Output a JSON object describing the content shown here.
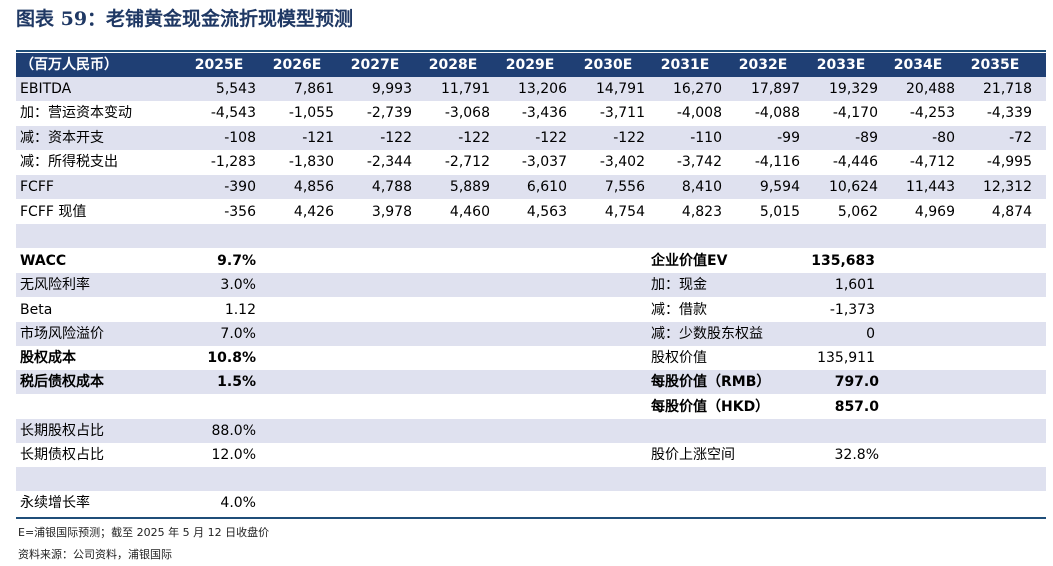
{
  "title": "图表 59：老铺黄金现金流折现模型预测",
  "header": {
    "label": "（百万人民币）",
    "years": [
      "2025E",
      "2026E",
      "2027E",
      "2028E",
      "2029E",
      "2030E",
      "2031E",
      "2032E",
      "2033E",
      "2034E",
      "2035E"
    ]
  },
  "rows": [
    {
      "label": "EBITDA",
      "values": [
        "5,543",
        "7,861",
        "9,993",
        "11,791",
        "13,206",
        "14,791",
        "16,270",
        "17,897",
        "19,329",
        "20,488",
        "21,718"
      ]
    },
    {
      "label": "加：营运资本变动",
      "values": [
        "-4,543",
        "-1,055",
        "-2,739",
        "-3,068",
        "-3,436",
        "-3,711",
        "-4,008",
        "-4,088",
        "-4,170",
        "-4,253",
        "-4,339"
      ]
    },
    {
      "label": "减：资本开支",
      "values": [
        "-108",
        "-121",
        "-122",
        "-122",
        "-122",
        "-122",
        "-110",
        "-99",
        "-89",
        "-80",
        "-72"
      ]
    },
    {
      "label": "减：所得税支出",
      "values": [
        "-1,283",
        "-1,830",
        "-2,344",
        "-2,712",
        "-3,037",
        "-3,402",
        "-3,742",
        "-4,116",
        "-4,446",
        "-4,712",
        "-4,995"
      ]
    },
    {
      "label": "FCFF",
      "values": [
        "-390",
        "4,856",
        "4,788",
        "5,889",
        "6,610",
        "7,556",
        "8,410",
        "9,594",
        "10,624",
        "11,443",
        "12,312"
      ]
    },
    {
      "label": "FCFF 现值",
      "values": [
        "-356",
        "4,426",
        "3,978",
        "4,460",
        "4,563",
        "4,754",
        "4,823",
        "5,015",
        "5,062",
        "4,969",
        "4,874"
      ]
    }
  ],
  "assumptions": {
    "wacc": {
      "label": "WACC",
      "value": "9.7%"
    },
    "risk_free": {
      "label": "无风险利率",
      "value": "3.0%"
    },
    "beta": {
      "label": "Beta",
      "value": "1.12"
    },
    "market_premium": {
      "label": "市场风险溢价",
      "value": "7.0%"
    },
    "cost_of_equity": {
      "label": "股权成本",
      "value": "10.8%"
    },
    "after_tax_cost_of_debt": {
      "label": "税后债权成本",
      "value": "1.5%"
    },
    "lt_equity_ratio": {
      "label": "长期股权占比",
      "value": "88.0%"
    },
    "lt_debt_ratio": {
      "label": "长期债权占比",
      "value": "12.0%"
    },
    "perpetual_growth": {
      "label": "永续增长率",
      "value": "4.0%"
    }
  },
  "valuation": {
    "ev": {
      "label": "企业价值EV",
      "value": "135,683"
    },
    "cash": {
      "label": "加：现金",
      "value": "1,601"
    },
    "borrowings": {
      "label": "减：借款",
      "value": "-1,373"
    },
    "minority": {
      "label": "减：少数股东权益",
      "value": "0"
    },
    "equity_value": {
      "label": "股权价值",
      "value": "135,911"
    },
    "per_share_rmb": {
      "label": "每股价值（RMB）",
      "value": "797.0"
    },
    "per_share_hkd": {
      "label": "每股价值（HKD）",
      "value": "857.0"
    },
    "upside": {
      "label": "股价上涨空间",
      "value": "32.8%"
    }
  },
  "footnotes": {
    "note": "E=浦银国际预测；截至 2025 年 5 月 12 日收盘价",
    "source": "资料来源：公司资料，浦银国际"
  }
}
